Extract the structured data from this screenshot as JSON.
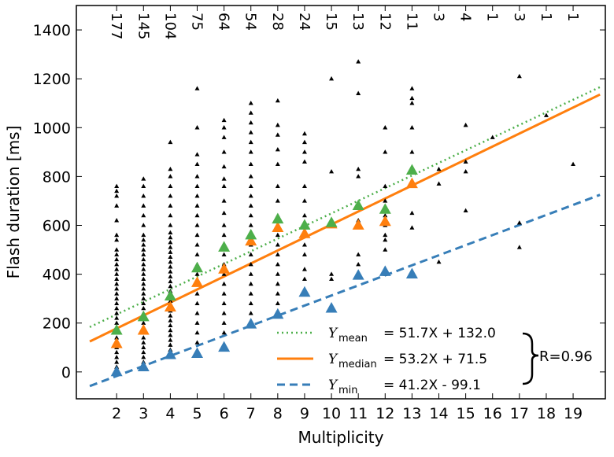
{
  "colors": {
    "mean": "#4daf4a",
    "median": "#ff7f0e",
    "min": "#377eb8",
    "points": "#000000"
  },
  "chart_data": {
    "type": "scatter",
    "xlabel": "Multiplicity",
    "ylabel": "Flash duration [ms]",
    "xlim": [
      0.5,
      20.2
    ],
    "ylim": [
      -110,
      1500
    ],
    "xticks": [
      2,
      3,
      4,
      5,
      6,
      7,
      8,
      9,
      10,
      11,
      12,
      13,
      14,
      15,
      16,
      17,
      18,
      19
    ],
    "yticks": [
      0,
      200,
      400,
      600,
      800,
      1000,
      1200,
      1400
    ],
    "counts": [
      {
        "x": 2,
        "label": "177"
      },
      {
        "x": 3,
        "label": "145"
      },
      {
        "x": 4,
        "label": "104"
      },
      {
        "x": 5,
        "label": "75"
      },
      {
        "x": 6,
        "label": "64"
      },
      {
        "x": 7,
        "label": "54"
      },
      {
        "x": 8,
        "label": "28"
      },
      {
        "x": 9,
        "label": "24"
      },
      {
        "x": 10,
        "label": "15"
      },
      {
        "x": 11,
        "label": "13"
      },
      {
        "x": 12,
        "label": "12"
      },
      {
        "x": 13,
        "label": "11"
      },
      {
        "x": 14,
        "label": "3"
      },
      {
        "x": 15,
        "label": "4"
      },
      {
        "x": 16,
        "label": "1"
      },
      {
        "x": 17,
        "label": "3"
      },
      {
        "x": 18,
        "label": "1"
      },
      {
        "x": 19,
        "label": "1"
      }
    ],
    "points": [
      {
        "x": 2,
        "y": [
          0,
          20,
          40,
          60,
          80,
          100,
          120,
          140,
          160,
          180,
          200,
          220,
          240,
          260,
          280,
          300,
          320,
          340,
          360,
          380,
          400,
          420,
          440,
          460,
          480,
          500,
          540,
          560,
          620,
          680,
          720,
          740,
          760
        ]
      },
      {
        "x": 3,
        "y": [
          20,
          40,
          60,
          80,
          100,
          120,
          140,
          160,
          180,
          200,
          220,
          240,
          260,
          280,
          300,
          320,
          340,
          360,
          380,
          400,
          420,
          440,
          460,
          480,
          500,
          520,
          540,
          560,
          600,
          640,
          680,
          720,
          760,
          790
        ]
      },
      {
        "x": 4,
        "y": [
          70,
          90,
          110,
          130,
          150,
          170,
          190,
          210,
          230,
          250,
          270,
          290,
          310,
          330,
          350,
          370,
          390,
          410,
          430,
          450,
          470,
          490,
          510,
          530,
          550,
          570,
          600,
          640,
          680,
          720,
          760,
          800,
          830,
          940
        ]
      },
      {
        "x": 5,
        "y": [
          75,
          120,
          160,
          200,
          240,
          280,
          320,
          360,
          400,
          440,
          480,
          520,
          560,
          600,
          640,
          680,
          720,
          760,
          800,
          850,
          890,
          1000,
          1160
        ]
      },
      {
        "x": 6,
        "y": [
          100,
          160,
          200,
          240,
          280,
          320,
          360,
          400,
          440,
          480,
          520,
          560,
          600,
          650,
          700,
          760,
          790,
          840,
          900,
          960,
          1000,
          1030
        ]
      },
      {
        "x": 7,
        "y": [
          195,
          240,
          280,
          320,
          360,
          400,
          440,
          480,
          520,
          560,
          600,
          640,
          680,
          720,
          760,
          800,
          850,
          900,
          940,
          980,
          1020,
          1060,
          1100
        ]
      },
      {
        "x": 8,
        "y": [
          235,
          280,
          320,
          360,
          400,
          440,
          480,
          520,
          560,
          600,
          640,
          700,
          760,
          850,
          910,
          970,
          1010,
          1110
        ]
      },
      {
        "x": 9,
        "y": [
          330,
          380,
          420,
          480,
          520,
          560,
          600,
          640,
          700,
          760,
          860,
          900,
          940,
          975
        ]
      },
      {
        "x": 10,
        "y": [
          260,
          380,
          400,
          600,
          620,
          820,
          1200
        ]
      },
      {
        "x": 11,
        "y": [
          400,
          440,
          480,
          620,
          680,
          800,
          830,
          1140,
          1270
        ]
      },
      {
        "x": 12,
        "y": [
          400,
          500,
          540,
          560,
          600,
          640,
          700,
          760,
          900,
          1000
        ]
      },
      {
        "x": 13,
        "y": [
          400,
          590,
          650,
          760,
          780,
          900,
          1000,
          1100,
          1120,
          1160
        ]
      },
      {
        "x": 14,
        "y": [
          450,
          770,
          830
        ]
      },
      {
        "x": 15,
        "y": [
          660,
          820,
          860,
          1010
        ]
      },
      {
        "x": 16,
        "y": [
          960
        ]
      },
      {
        "x": 17,
        "y": [
          510,
          610,
          1210
        ]
      },
      {
        "x": 18,
        "y": [
          1050
        ]
      },
      {
        "x": 19,
        "y": [
          850
        ]
      }
    ],
    "series": [
      {
        "key": "mean",
        "x": [
          2,
          3,
          4,
          5,
          6,
          7,
          8,
          9,
          10,
          11,
          12,
          13
        ],
        "y": [
          170,
          225,
          310,
          425,
          510,
          560,
          625,
          600,
          610,
          680,
          665,
          825
        ],
        "fit": {
          "slope": 51.7,
          "intercept": 132.0,
          "style": "dotted"
        }
      },
      {
        "key": "median",
        "x": [
          2,
          3,
          4,
          5,
          6,
          7,
          8,
          9,
          10,
          11,
          12,
          13
        ],
        "y": [
          115,
          170,
          265,
          365,
          420,
          535,
          590,
          565,
          605,
          600,
          615,
          770
        ],
        "fit": {
          "slope": 53.2,
          "intercept": 71.5,
          "style": "solid"
        }
      },
      {
        "key": "min",
        "x": [
          2,
          3,
          4,
          5,
          6,
          7,
          8,
          9,
          10,
          11,
          12,
          13
        ],
        "y": [
          0,
          20,
          70,
          75,
          100,
          195,
          235,
          325,
          260,
          395,
          410,
          400
        ],
        "fit": {
          "slope": 41.2,
          "intercept": -99.1,
          "style": "dashed"
        }
      }
    ],
    "fit_xrange": [
      1,
      20
    ],
    "legend": {
      "placement": "lower-right",
      "entries": [
        {
          "var": "Y",
          "sub": "mean",
          "eq": "= 51.7X + 132.0"
        },
        {
          "var": "Y",
          "sub": "median",
          "eq": "= 53.2X + 71.5"
        },
        {
          "var": "Y",
          "sub": "min",
          "eq": "= 41.2X  - 99.1"
        }
      ],
      "r_label": "R=0.96"
    }
  }
}
